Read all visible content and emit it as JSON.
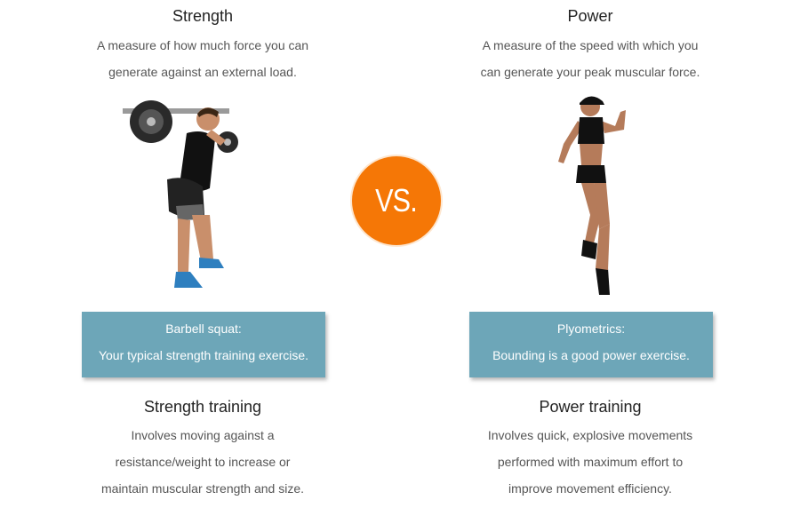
{
  "strength": {
    "title": "Strength",
    "desc_line1": "A measure of how much force you can",
    "desc_line2": "generate against an external load.",
    "caption_line1": "Barbell squat:",
    "caption_line2": "Your typical strength training exercise.",
    "training_title": "Strength training",
    "training_line1": "Involves moving against a",
    "training_line2": "resistance/weight to increase or",
    "training_line3": "maintain muscular strength and size."
  },
  "power": {
    "title": "Power",
    "desc_line1": "A measure of the speed with which you",
    "desc_line2": "can generate your peak muscular force.",
    "caption_line1": "Plyometrics:",
    "caption_line2": "Bounding is a good power exercise.",
    "training_title": "Power training",
    "training_line1": "Involves quick, explosive movements",
    "training_line2": "performed with maximum effort to",
    "training_line3": "improve movement efficiency."
  },
  "vs_label": "VS.",
  "colors": {
    "caption_bg": "#6da6b8",
    "vs_bg": "#f57706"
  }
}
